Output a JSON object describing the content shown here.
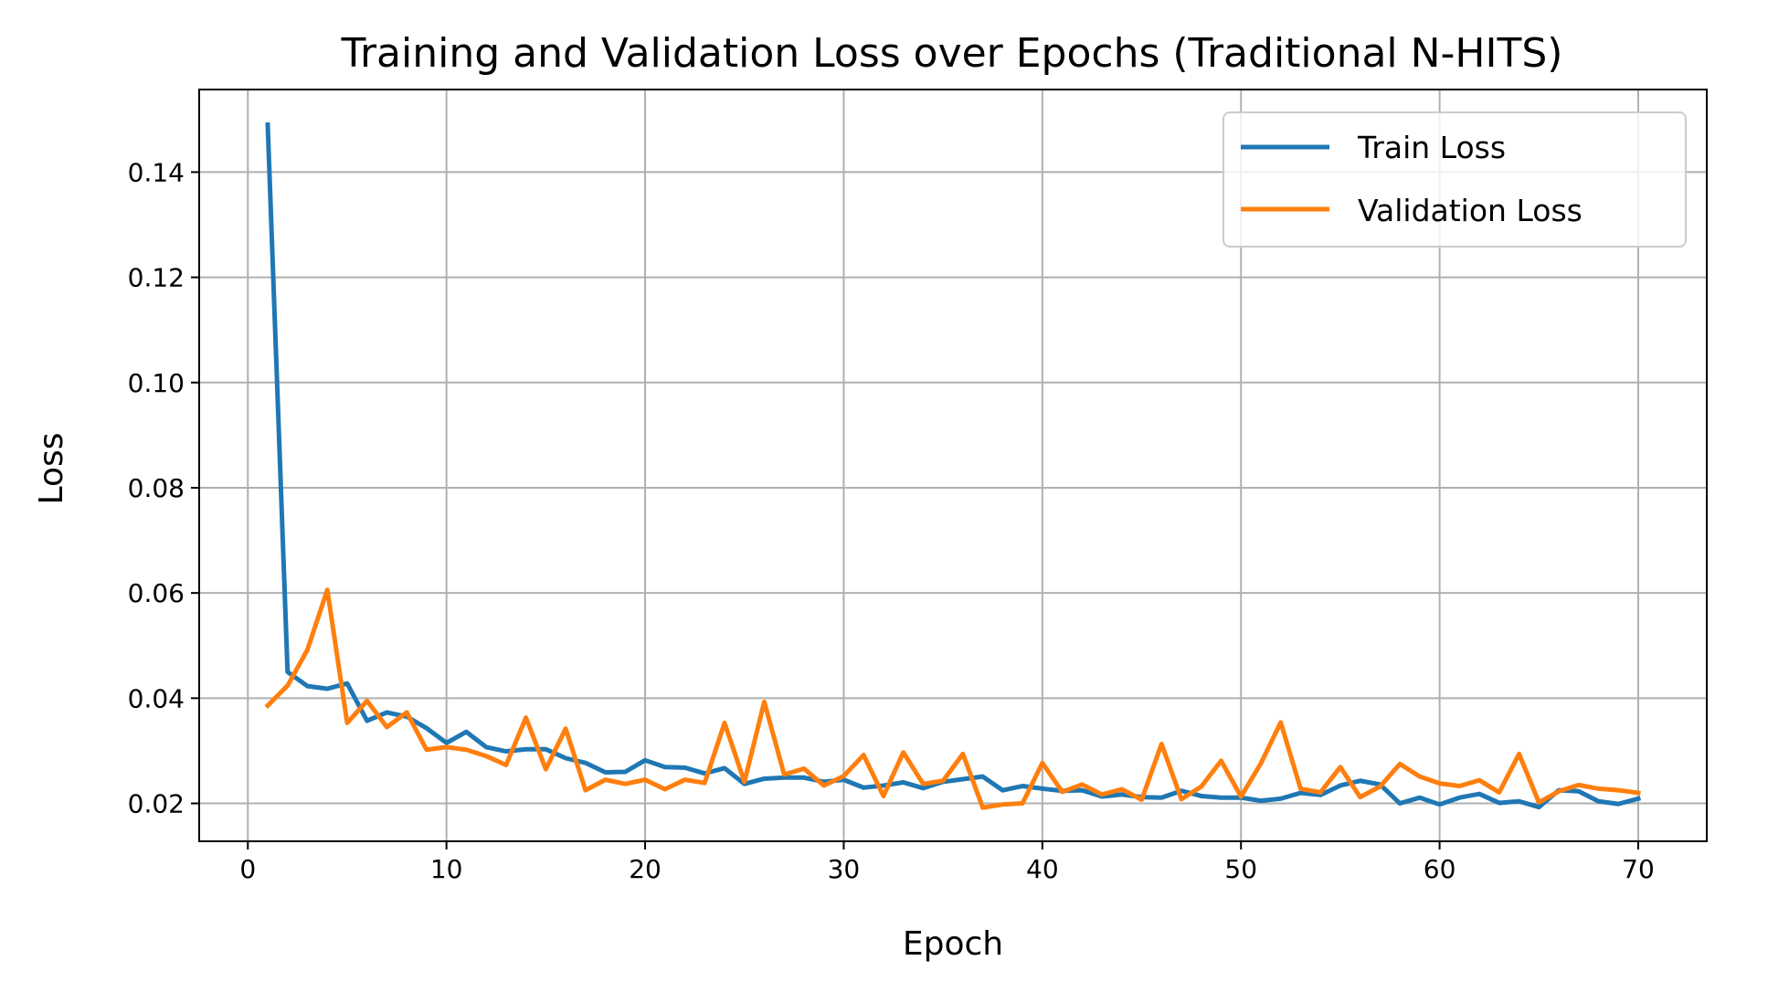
{
  "chart_data": {
    "type": "line",
    "title": "Training and Validation Loss over Epochs (Traditional N-HITS)",
    "xlabel": "Epoch",
    "ylabel": "Loss",
    "xlim": [
      -2.45,
      73.45
    ],
    "ylim": [
      0.0128,
      0.1557
    ],
    "x_ticks": [
      0,
      10,
      20,
      30,
      40,
      50,
      60,
      70
    ],
    "x_tick_labels": [
      "0",
      "10",
      "20",
      "30",
      "40",
      "50",
      "60",
      "70"
    ],
    "y_ticks": [
      0.02,
      0.04,
      0.06,
      0.08,
      0.1,
      0.12,
      0.14
    ],
    "y_tick_labels": [
      "0.02",
      "0.04",
      "0.06",
      "0.08",
      "0.10",
      "0.12",
      "0.14"
    ],
    "grid": true,
    "legend_position": "top-right",
    "x": [
      1,
      2,
      3,
      4,
      5,
      6,
      7,
      8,
      9,
      10,
      11,
      12,
      13,
      14,
      15,
      16,
      17,
      18,
      19,
      20,
      21,
      22,
      23,
      24,
      25,
      26,
      27,
      28,
      29,
      30,
      31,
      32,
      33,
      34,
      35,
      36,
      37,
      38,
      39,
      40,
      41,
      42,
      43,
      44,
      45,
      46,
      47,
      48,
      49,
      50,
      51,
      52,
      53,
      54,
      55,
      56,
      57,
      58,
      59,
      60,
      61,
      62,
      63,
      64,
      65,
      66,
      67,
      68,
      69,
      70
    ],
    "series": [
      {
        "name": "Train Loss",
        "color": "#1f77b4",
        "values": [
          0.149,
          0.045,
          0.0423,
          0.0418,
          0.0428,
          0.0357,
          0.0373,
          0.0365,
          0.0343,
          0.0315,
          0.0336,
          0.0307,
          0.0299,
          0.0303,
          0.0303,
          0.0286,
          0.0277,
          0.0259,
          0.026,
          0.0282,
          0.0269,
          0.0268,
          0.0257,
          0.0267,
          0.0237,
          0.0247,
          0.0249,
          0.0249,
          0.0241,
          0.0245,
          0.023,
          0.0234,
          0.024,
          0.0229,
          0.0241,
          0.0246,
          0.0251,
          0.0225,
          0.0233,
          0.0228,
          0.0224,
          0.0225,
          0.0213,
          0.0217,
          0.0212,
          0.0211,
          0.0224,
          0.0214,
          0.0211,
          0.0211,
          0.0205,
          0.0209,
          0.022,
          0.0216,
          0.0234,
          0.0243,
          0.0236,
          0.02,
          0.0211,
          0.0198,
          0.0211,
          0.0218,
          0.0201,
          0.0204,
          0.0193,
          0.0225,
          0.0223,
          0.0204,
          0.0199,
          0.0209
        ]
      },
      {
        "name": "Validation Loss",
        "color": "#ff7f0e",
        "values": [
          0.0386,
          0.0424,
          0.0492,
          0.0606,
          0.0353,
          0.0395,
          0.0345,
          0.0373,
          0.0302,
          0.0307,
          0.0302,
          0.029,
          0.0273,
          0.0363,
          0.0265,
          0.0342,
          0.0225,
          0.0245,
          0.0237,
          0.0245,
          0.0227,
          0.0245,
          0.0239,
          0.0353,
          0.0241,
          0.0393,
          0.0255,
          0.0266,
          0.0234,
          0.0252,
          0.0292,
          0.0214,
          0.0297,
          0.0237,
          0.0243,
          0.0294,
          0.0192,
          0.0198,
          0.02,
          0.0277,
          0.0222,
          0.0236,
          0.0217,
          0.0227,
          0.0207,
          0.0313,
          0.0208,
          0.0232,
          0.0281,
          0.0213,
          0.0276,
          0.0354,
          0.0228,
          0.0221,
          0.0269,
          0.0212,
          0.0232,
          0.0275,
          0.0251,
          0.0238,
          0.0233,
          0.0244,
          0.0221,
          0.0294,
          0.0202,
          0.0223,
          0.0235,
          0.0228,
          0.0225,
          0.022
        ]
      }
    ]
  }
}
